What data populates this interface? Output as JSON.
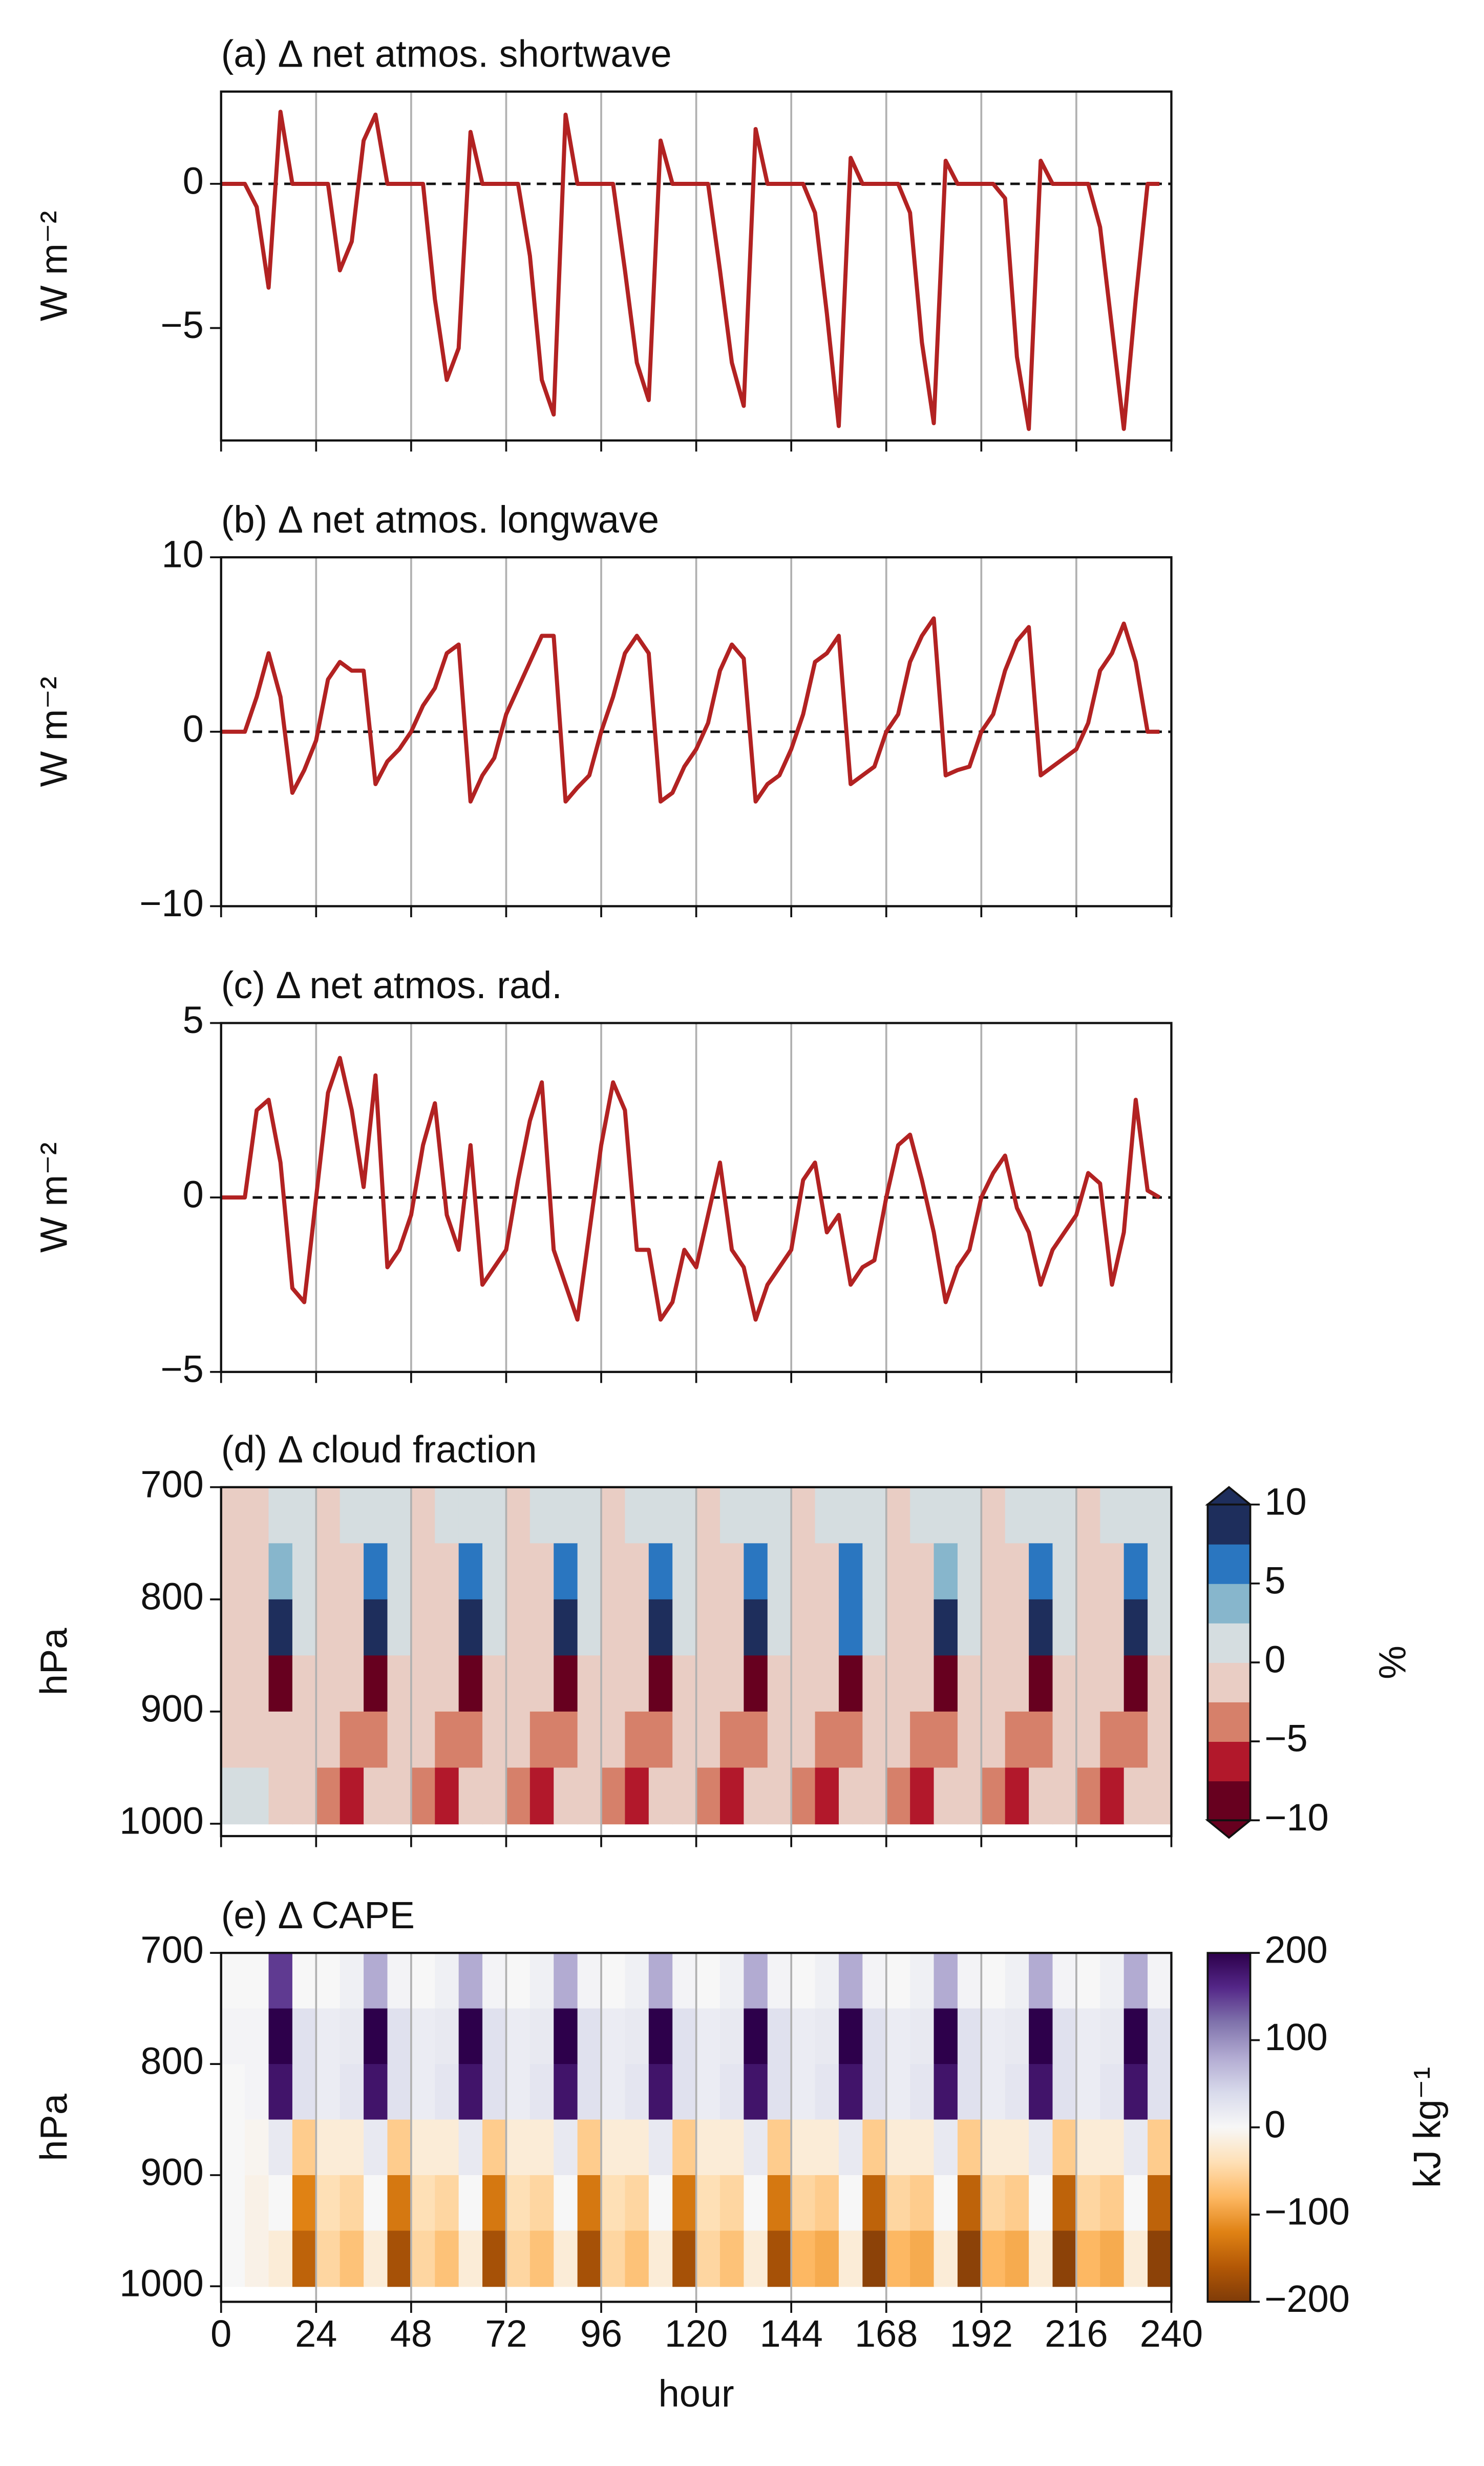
{
  "chart_data": [
    {
      "type": "line",
      "title": "(a) Δ net atmos. shortwave",
      "ylabel": "W m⁻²",
      "color": "#b22222",
      "x": [
        0,
        3,
        6,
        9,
        12,
        15,
        18,
        21,
        24,
        27,
        30,
        33,
        36,
        39,
        42,
        45,
        48,
        51,
        54,
        57,
        60,
        63,
        66,
        69,
        72,
        75,
        78,
        81,
        84,
        87,
        90,
        93,
        96,
        99,
        102,
        105,
        108,
        111,
        114,
        117,
        120,
        123,
        126,
        129,
        132,
        135,
        138,
        141,
        144,
        147,
        150,
        153,
        156,
        159,
        162,
        165,
        168,
        171,
        174,
        177,
        180,
        183,
        186,
        189,
        192,
        195,
        198,
        201,
        204,
        207,
        210,
        213,
        216,
        219,
        222,
        225,
        228,
        231,
        234,
        237
      ],
      "values": [
        0,
        0,
        0,
        -0.8,
        -3.6,
        2.5,
        0,
        0,
        0,
        0,
        -3,
        -2,
        1.5,
        2.4,
        0,
        0,
        0,
        0,
        -4,
        -6.8,
        -5.7,
        1.8,
        0,
        0,
        0,
        0,
        -2.5,
        -6.8,
        -8,
        2.4,
        0,
        0,
        0,
        0,
        -3,
        -6.2,
        -7.5,
        1.5,
        0,
        0,
        0,
        0,
        -3,
        -6.2,
        -7.7,
        1.9,
        0,
        0,
        0,
        0,
        -1,
        -4.5,
        -8.4,
        0.9,
        0,
        0,
        0,
        0,
        -1,
        -5.5,
        -8.3,
        0.8,
        0,
        0,
        0,
        0,
        -0.5,
        -6,
        -8.5,
        0.8,
        0,
        0,
        0,
        0,
        -1.5,
        -5,
        -8.5,
        -4,
        0,
        0
      ],
      "hline": 0,
      "xlim": [
        0,
        240
      ],
      "xticks": [
        0,
        24,
        48,
        72,
        96,
        120,
        144,
        168,
        192,
        216,
        240
      ],
      "xgrid": true,
      "show_xtick_labels": false,
      "ylim": [
        -8.9,
        3.2
      ],
      "yticks": [
        {
          "value": -5,
          "label": "−5"
        },
        0
      ]
    },
    {
      "type": "line",
      "title": "(b) Δ net atmos. longwave",
      "ylabel": "W m⁻²",
      "color": "#b22222",
      "x": [
        0,
        3,
        6,
        9,
        12,
        15,
        18,
        21,
        24,
        27,
        30,
        33,
        36,
        39,
        42,
        45,
        48,
        51,
        54,
        57,
        60,
        63,
        66,
        69,
        72,
        75,
        78,
        81,
        84,
        87,
        90,
        93,
        96,
        99,
        102,
        105,
        108,
        111,
        114,
        117,
        120,
        123,
        126,
        129,
        132,
        135,
        138,
        141,
        144,
        147,
        150,
        153,
        156,
        159,
        162,
        165,
        168,
        171,
        174,
        177,
        180,
        183,
        186,
        189,
        192,
        195,
        198,
        201,
        204,
        207,
        210,
        213,
        216,
        219,
        222,
        225,
        228,
        231,
        234,
        237
      ],
      "values": [
        0,
        0,
        0,
        2,
        4.5,
        2,
        -3.5,
        -2.2,
        -0.5,
        3,
        4,
        3.5,
        3.5,
        -3,
        -1.7,
        -1,
        0,
        1.5,
        2.5,
        4.5,
        5,
        -4,
        -2.5,
        -1.5,
        1,
        2.5,
        4,
        5.5,
        5.5,
        -4,
        -3.2,
        -2.5,
        0,
        2,
        4.5,
        5.5,
        4.5,
        -4,
        -3.5,
        -2,
        -1,
        0.5,
        3.5,
        5,
        4.2,
        -4,
        -3,
        -2.5,
        -1,
        1,
        4,
        4.5,
        5.5,
        -3,
        -2.5,
        -2,
        0,
        1,
        4,
        5.5,
        6.5,
        -2.5,
        -2.2,
        -2,
        0,
        1,
        3.5,
        5.2,
        6,
        -2.5,
        -2,
        -1.5,
        -1,
        0.5,
        3.5,
        4.5,
        6.2,
        4,
        0,
        0
      ],
      "hline": 0,
      "xlim": [
        0,
        240
      ],
      "xticks": [
        0,
        24,
        48,
        72,
        96,
        120,
        144,
        168,
        192,
        216,
        240
      ],
      "xgrid": true,
      "show_xtick_labels": false,
      "ylim": [
        -10,
        10
      ],
      "yticks": [
        {
          "value": -10,
          "label": "−10"
        },
        0,
        10
      ]
    },
    {
      "type": "line",
      "title": "(c) Δ net atmos. rad.",
      "ylabel": "W m⁻²",
      "color": "#b22222",
      "x": [
        0,
        3,
        6,
        9,
        12,
        15,
        18,
        21,
        24,
        27,
        30,
        33,
        36,
        39,
        42,
        45,
        48,
        51,
        54,
        57,
        60,
        63,
        66,
        69,
        72,
        75,
        78,
        81,
        84,
        87,
        90,
        93,
        96,
        99,
        102,
        105,
        108,
        111,
        114,
        117,
        120,
        123,
        126,
        129,
        132,
        135,
        138,
        141,
        144,
        147,
        150,
        153,
        156,
        159,
        162,
        165,
        168,
        171,
        174,
        177,
        180,
        183,
        186,
        189,
        192,
        195,
        198,
        201,
        204,
        207,
        210,
        213,
        216,
        219,
        222,
        225,
        228,
        231,
        234,
        237
      ],
      "values": [
        0,
        0,
        0,
        2.5,
        2.8,
        1,
        -2.6,
        -3,
        0,
        3,
        4,
        2.5,
        0.3,
        3.5,
        -2,
        -1.5,
        -0.5,
        1.5,
        2.7,
        -0.5,
        -1.5,
        1.5,
        -2.5,
        -2,
        -1.5,
        0.5,
        2.2,
        3.3,
        -1.5,
        -2.5,
        -3.5,
        -1,
        1.5,
        3.3,
        2.5,
        -1.5,
        -1.5,
        -3.5,
        -3,
        -1.5,
        -2,
        -0.5,
        1,
        -1.5,
        -2,
        -3.5,
        -2.5,
        -2,
        -1.5,
        0.5,
        1,
        -1,
        -0.5,
        -2.5,
        -2,
        -1.8,
        0,
        1.5,
        1.8,
        0.5,
        -1,
        -3,
        -2,
        -1.5,
        0,
        0.7,
        1.2,
        -0.3,
        -1,
        -2.5,
        -1.5,
        -1,
        -0.5,
        0.7,
        0.4,
        -2.5,
        -1,
        2.8,
        0.2,
        0
      ],
      "hline": 0,
      "xlim": [
        0,
        240
      ],
      "xticks": [
        0,
        24,
        48,
        72,
        96,
        120,
        144,
        168,
        192,
        216,
        240
      ],
      "xgrid": true,
      "show_xtick_labels": false,
      "ylim": [
        -5,
        5
      ],
      "yticks": [
        {
          "value": -5,
          "label": "−5"
        },
        0,
        5
      ]
    },
    {
      "type": "heatmap",
      "title": "(d) Δ cloud fraction",
      "ylabel": "hPa",
      "x": [
        0,
        6,
        12,
        18,
        24,
        30,
        36,
        42,
        48,
        54,
        60,
        66,
        72,
        78,
        84,
        90,
        96,
        102,
        108,
        114,
        120,
        126,
        132,
        138,
        144,
        150,
        156,
        162,
        168,
        174,
        180,
        186,
        192,
        198,
        204,
        210,
        216,
        222,
        228,
        234,
        240
      ],
      "y": [
        700,
        750,
        800,
        850,
        900,
        950,
        1000
      ],
      "z": [
        [
          -1,
          -1,
          0.5,
          0.5,
          -0.5,
          0.5,
          1,
          0.5,
          -0.5,
          0.5,
          1,
          0.5,
          -0.5,
          0.5,
          1,
          0.5,
          -0.5,
          0.5,
          1,
          0.5,
          -0.5,
          0.5,
          1,
          0.5,
          -0.5,
          0.5,
          1,
          0.5,
          -0.5,
          0.5,
          1,
          0.5,
          -0.5,
          0.5,
          1,
          0.5,
          -0.5,
          0.5,
          1,
          0.5
        ],
        [
          -1,
          -1,
          4,
          0.5,
          -0.5,
          -0.5,
          5,
          0.5,
          -0.5,
          -0.5,
          5,
          0.5,
          -0.5,
          -0.5,
          5,
          0.5,
          -0.5,
          -0.5,
          6,
          0.5,
          -0.5,
          -0.5,
          5,
          0.5,
          -0.5,
          -0.5,
          5,
          0.5,
          -0.5,
          -0.5,
          4,
          0.5,
          -0.5,
          -0.5,
          5,
          0.5,
          -0.5,
          -0.5,
          5,
          0.5
        ],
        [
          -1,
          -1,
          9,
          1,
          -1,
          -1,
          9,
          1,
          -1,
          -1,
          9,
          1,
          -1,
          -1,
          9,
          1,
          -1,
          -1,
          9,
          1,
          -1,
          -1,
          9,
          1,
          -1,
          -1,
          7,
          1,
          -1,
          -1,
          9,
          1,
          -1,
          -1,
          9,
          1,
          -1,
          -1,
          9,
          1
        ],
        [
          -1,
          -2,
          -8,
          -1.5,
          -1,
          -2,
          -8,
          -1.5,
          -1,
          -2,
          -8,
          -1.5,
          -1,
          -2,
          -8,
          -1.5,
          -1,
          -2,
          -8,
          -1.5,
          -1,
          -2,
          -8,
          -1.5,
          -1,
          -2,
          -8,
          -1.5,
          -1,
          -2,
          -8,
          -1.5,
          -1,
          -2,
          -8,
          -1.5,
          -1,
          -2,
          -8,
          -1.5
        ],
        [
          -1,
          -1,
          -1.5,
          -1,
          -1.5,
          -4,
          -3,
          -1,
          -1.5,
          -5,
          -3,
          -1,
          -1.5,
          -4,
          -3,
          -1,
          -1.5,
          -4,
          -3,
          -1,
          -1.5,
          -4,
          -3,
          -1,
          -1.5,
          -4,
          -3,
          -1,
          -1.5,
          -4,
          -3,
          -1,
          -1.5,
          -4,
          -3,
          -1,
          -1.5,
          -4,
          -3,
          -1
        ],
        [
          0.5,
          0.5,
          -1,
          -1,
          -4,
          -6,
          -2,
          -1,
          -5,
          -7,
          -2,
          -1,
          -5,
          -7,
          -2,
          -1,
          -4,
          -6,
          -2,
          -1,
          -4,
          -6,
          -2,
          -1,
          -4,
          -6,
          -2,
          -1,
          -4,
          -6,
          -2,
          -1,
          -4,
          -6,
          -2,
          -1,
          -4,
          -6,
          -2,
          -1
        ]
      ],
      "xlim": [
        0,
        240
      ],
      "xticks": [
        0,
        24,
        48,
        72,
        96,
        120,
        144,
        168,
        192,
        216,
        240
      ],
      "xgrid": true,
      "show_xtick_labels": false,
      "ylim": [
        1011,
        700
      ],
      "yticks": [
        700,
        800,
        900,
        1000
      ],
      "colorbar": {
        "label": "%",
        "kind": "discrete",
        "extend": "both",
        "levels": [
          -10,
          -7.5,
          -5,
          -2.5,
          0,
          2.5,
          5,
          7.5,
          10
        ],
        "colors": [
          "#67001f",
          "#b2182b",
          "#d6806a",
          "#e9cdc4",
          "#d5dde0",
          "#87b6cc",
          "#2a76c0",
          "#1e2e5c"
        ],
        "ticks": [
          {
            "value": 10,
            "label": "10"
          },
          5,
          0,
          {
            "value": -5,
            "label": "−5"
          },
          {
            "value": -10,
            "label": "−10"
          }
        ]
      }
    },
    {
      "type": "heatmap",
      "title": "(e) Δ CAPE",
      "ylabel": "hPa",
      "xlabel": "hour",
      "x": [
        0,
        6,
        12,
        18,
        24,
        30,
        36,
        42,
        48,
        54,
        60,
        66,
        72,
        78,
        84,
        90,
        96,
        102,
        108,
        114,
        120,
        126,
        132,
        138,
        144,
        150,
        156,
        162,
        168,
        174,
        180,
        186,
        192,
        198,
        204,
        210,
        216,
        222,
        228,
        234,
        240
      ],
      "y": [
        700,
        750,
        800,
        850,
        900,
        950,
        1000
      ],
      "z": [
        [
          0,
          0,
          150,
          0,
          0,
          10,
          80,
          5,
          0,
          10,
          80,
          5,
          0,
          10,
          80,
          5,
          0,
          10,
          80,
          5,
          0,
          10,
          80,
          5,
          0,
          10,
          80,
          5,
          0,
          10,
          80,
          5,
          0,
          10,
          80,
          5,
          0,
          10,
          80,
          5
        ],
        [
          5,
          5,
          200,
          30,
          15,
          20,
          200,
          30,
          15,
          20,
          200,
          30,
          15,
          20,
          200,
          30,
          15,
          20,
          200,
          30,
          15,
          20,
          200,
          30,
          15,
          20,
          200,
          30,
          15,
          20,
          200,
          30,
          15,
          20,
          200,
          30,
          15,
          20,
          200,
          30
        ],
        [
          0,
          5,
          180,
          30,
          15,
          25,
          180,
          30,
          15,
          25,
          180,
          30,
          15,
          25,
          180,
          30,
          15,
          25,
          180,
          30,
          15,
          25,
          180,
          30,
          15,
          25,
          180,
          30,
          15,
          25,
          180,
          30,
          15,
          25,
          180,
          30,
          15,
          25,
          180,
          30
        ],
        [
          0,
          -5,
          20,
          -60,
          -20,
          -20,
          20,
          -60,
          -20,
          -20,
          20,
          -60,
          -20,
          -20,
          20,
          -60,
          -20,
          -20,
          20,
          -60,
          -20,
          -20,
          20,
          -60,
          -20,
          -20,
          20,
          -60,
          -20,
          -20,
          20,
          -60,
          -20,
          -20,
          20,
          -60,
          -20,
          -20,
          20,
          -60
        ],
        [
          0,
          -10,
          0,
          -120,
          -40,
          -50,
          0,
          -130,
          -40,
          -50,
          0,
          -130,
          -40,
          -50,
          0,
          -130,
          -40,
          -50,
          0,
          -130,
          -40,
          -50,
          0,
          -130,
          -50,
          -60,
          0,
          -150,
          -50,
          -60,
          0,
          -150,
          -50,
          -60,
          0,
          -150,
          -50,
          -60,
          0,
          -150
        ],
        [
          0,
          -10,
          -20,
          -150,
          -50,
          -70,
          -20,
          -170,
          -50,
          -70,
          -20,
          -170,
          -50,
          -70,
          -20,
          -170,
          -50,
          -70,
          -20,
          -170,
          -50,
          -70,
          -20,
          -170,
          -80,
          -90,
          -20,
          -190,
          -80,
          -90,
          -20,
          -190,
          -80,
          -90,
          -20,
          -190,
          -80,
          -90,
          -20,
          -190
        ]
      ],
      "xlim": [
        0,
        240
      ],
      "xticks": [
        0,
        24,
        48,
        72,
        96,
        120,
        144,
        168,
        192,
        216,
        240
      ],
      "xgrid": true,
      "show_xtick_labels": true,
      "ylim": [
        1014,
        700
      ],
      "yticks": [
        700,
        800,
        900,
        1000
      ],
      "colorbar": {
        "label": "kJ kg⁻¹",
        "kind": "continuous",
        "zlim": [
          -200,
          200
        ],
        "colors": [
          "#7f3b08",
          "#b35806",
          "#e08214",
          "#fdb863",
          "#fee0b6",
          "#f7f7f7",
          "#d8daeb",
          "#b2abd2",
          "#8073ac",
          "#542788",
          "#2d004b"
        ],
        "ticks": [
          200,
          100,
          0,
          {
            "value": -100,
            "label": "−100"
          },
          {
            "value": -200,
            "label": "−200"
          }
        ]
      }
    }
  ]
}
